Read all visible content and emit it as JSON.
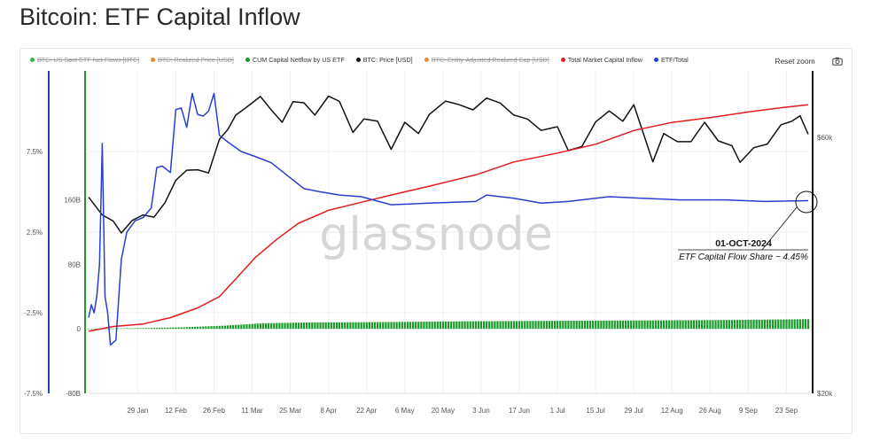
{
  "page": {
    "title": "Bitcoin: ETF Capital Inflow"
  },
  "toolbar": {
    "reset_zoom_label": "Reset zoom",
    "camera_icon": "camera-icon"
  },
  "legend": [
    {
      "label": "BTC: US Spot ETF Net Flows [BTC]",
      "color": "#35b34a",
      "enabled": false
    },
    {
      "label": "BTC: Realized Price [USD]",
      "color": "#f08a24",
      "enabled": false
    },
    {
      "label": "CUM Capital Netflow by US ETF",
      "color": "#1a9a2a",
      "enabled": true
    },
    {
      "label": "BTC: Price [USD]",
      "color": "#111111",
      "enabled": true
    },
    {
      "label": "BTC: Entity-Adjusted Realized Cap [USD]",
      "color": "#f08a24",
      "enabled": false
    },
    {
      "label": "Total Market Capital Inflow",
      "color": "#e31b1b",
      "enabled": true
    },
    {
      "label": "ETF/Total",
      "color": "#2a3ecf",
      "enabled": true
    }
  ],
  "watermark": "glassnode",
  "annotation": {
    "date": "01-OCT-2024",
    "text": "ETF Capital Flow Share ~ 4.45%"
  },
  "chart_data": {
    "type": "line",
    "x_labels": [
      "29 Jan",
      "12 Feb",
      "26 Feb",
      "11 Mar",
      "25 Mar",
      "8 Apr",
      "22 Apr",
      "6 May",
      "20 May",
      "3 Jun",
      "17 Jun",
      "1 Jul",
      "15 Jul",
      "29 Jul",
      "12 Aug",
      "26 Aug",
      "9 Sep",
      "23 Sep"
    ],
    "x_range": [
      "2024-01-11",
      "2024-10-01"
    ],
    "axis_pct": {
      "ticks": [
        "7.5%",
        "2.5%",
        "-2.5%",
        "-7.5%"
      ],
      "range": [
        -7.5,
        12.5
      ]
    },
    "axis_capital": {
      "ticks": [
        "160B",
        "80B",
        "0",
        "-80B"
      ],
      "range": [
        -80,
        320
      ],
      "unit": "B"
    },
    "axis_price": {
      "ticks": [
        "$60k",
        "$20k"
      ],
      "scale": "log"
    },
    "series": [
      {
        "name": "BTC: Price [USD]",
        "color": "#111111",
        "axis": "price",
        "dates": [
          "2024-01-11",
          "2024-01-16",
          "2024-01-20",
          "2024-01-23",
          "2024-01-27",
          "2024-01-31",
          "2024-02-04",
          "2024-02-08",
          "2024-02-12",
          "2024-02-16",
          "2024-02-20",
          "2024-02-24",
          "2024-02-28",
          "2024-03-02",
          "2024-03-05",
          "2024-03-09",
          "2024-03-14",
          "2024-03-18",
          "2024-03-22",
          "2024-03-26",
          "2024-03-30",
          "2024-04-03",
          "2024-04-08",
          "2024-04-12",
          "2024-04-17",
          "2024-04-21",
          "2024-04-26",
          "2024-05-01",
          "2024-05-06",
          "2024-05-11",
          "2024-05-15",
          "2024-05-21",
          "2024-05-26",
          "2024-05-31",
          "2024-06-05",
          "2024-06-10",
          "2024-06-15",
          "2024-06-20",
          "2024-06-25",
          "2024-07-01",
          "2024-07-05",
          "2024-07-10",
          "2024-07-15",
          "2024-07-20",
          "2024-07-25",
          "2024-07-29",
          "2024-08-05",
          "2024-08-09",
          "2024-08-14",
          "2024-08-19",
          "2024-08-24",
          "2024-08-29",
          "2024-09-03",
          "2024-09-06",
          "2024-09-11",
          "2024-09-16",
          "2024-09-21",
          "2024-09-25",
          "2024-09-28",
          "2024-10-01"
        ],
        "values": [
          46400,
          43000,
          41900,
          39800,
          42000,
          43000,
          42600,
          45300,
          49900,
          52100,
          52200,
          51500,
          59500,
          62000,
          66000,
          68300,
          71500,
          67500,
          64000,
          69900,
          69600,
          66000,
          71600,
          70000,
          61300,
          64900,
          64300,
          57000,
          64000,
          61000,
          66200,
          70100,
          69000,
          67500,
          71000,
          69500,
          66000,
          64900,
          61800,
          62800,
          56700,
          57700,
          64100,
          67200,
          64300,
          69000,
          54000,
          61000,
          58900,
          58900,
          64000,
          59100,
          57900,
          53900,
          57400,
          58300,
          63300,
          64300,
          65800,
          60800
        ]
      },
      {
        "name": "Total Market Capital Inflow",
        "color": "#e31b1b",
        "axis": "capital",
        "dates": [
          "2024-01-11",
          "2024-01-20",
          "2024-01-31",
          "2024-02-10",
          "2024-02-20",
          "2024-02-28",
          "2024-03-05",
          "2024-03-12",
          "2024-03-20",
          "2024-03-28",
          "2024-04-08",
          "2024-04-20",
          "2024-05-01",
          "2024-05-15",
          "2024-06-01",
          "2024-06-15",
          "2024-07-01",
          "2024-07-15",
          "2024-07-29",
          "2024-08-12",
          "2024-08-26",
          "2024-09-09",
          "2024-09-23",
          "2024-10-01"
        ],
        "values": [
          -3,
          3,
          6,
          14,
          26,
          40,
          62,
          88,
          111,
          131,
          147,
          157,
          166,
          177,
          191,
          207,
          218,
          229,
          246,
          256,
          262,
          269,
          275,
          278
        ]
      },
      {
        "name": "ETF/Total",
        "color": "#2a3ecf",
        "axis": "pct",
        "dates": [
          "2024-01-11",
          "2024-01-12",
          "2024-01-13",
          "2024-01-14",
          "2024-01-15",
          "2024-01-16",
          "2024-01-17",
          "2024-01-18",
          "2024-01-19",
          "2024-01-21",
          "2024-01-23",
          "2024-01-25",
          "2024-01-28",
          "2024-01-31",
          "2024-02-03",
          "2024-02-05",
          "2024-02-07",
          "2024-02-10",
          "2024-02-12",
          "2024-02-14",
          "2024-02-16",
          "2024-02-18",
          "2024-02-20",
          "2024-02-22",
          "2024-02-24",
          "2024-02-26",
          "2024-02-28",
          "2024-03-02",
          "2024-03-07",
          "2024-03-12",
          "2024-03-18",
          "2024-03-24",
          "2024-03-30",
          "2024-04-05",
          "2024-04-12",
          "2024-04-20",
          "2024-05-01",
          "2024-05-15",
          "2024-06-01",
          "2024-06-05",
          "2024-06-15",
          "2024-06-25",
          "2024-07-05",
          "2024-07-15",
          "2024-07-20",
          "2024-08-01",
          "2024-08-15",
          "2024-09-01",
          "2024-09-15",
          "2024-10-01"
        ],
        "values": [
          -2.8,
          -2.0,
          -2.5,
          -1.5,
          0.5,
          8.0,
          -1.5,
          -2.5,
          -4.5,
          -4.2,
          0.8,
          2.5,
          3.2,
          3.4,
          4.0,
          6.5,
          6.6,
          6.2,
          10.1,
          10.2,
          9.0,
          11.1,
          9.8,
          9.7,
          10.0,
          11.1,
          8.5,
          8.1,
          7.5,
          7.2,
          6.8,
          6.0,
          5.2,
          5.0,
          4.8,
          4.7,
          4.2,
          4.3,
          4.4,
          4.8,
          4.6,
          4.3,
          4.4,
          4.6,
          4.7,
          4.6,
          4.5,
          4.5,
          4.4,
          4.45
        ]
      },
      {
        "name": "CUM Capital Netflow by US ETF",
        "color": "#1a9a2a",
        "axis": "capital",
        "type": "bar",
        "dates": [
          "2024-01-11",
          "2024-01-20",
          "2024-02-01",
          "2024-02-15",
          "2024-03-01",
          "2024-03-15",
          "2024-04-01",
          "2024-05-01",
          "2024-06-01",
          "2024-07-01",
          "2024-08-01",
          "2024-09-01",
          "2024-10-01"
        ],
        "values": [
          0,
          0.5,
          1,
          2,
          4,
          7,
          8,
          8.5,
          9.5,
          10,
          10.5,
          11,
          12
        ]
      }
    ]
  }
}
